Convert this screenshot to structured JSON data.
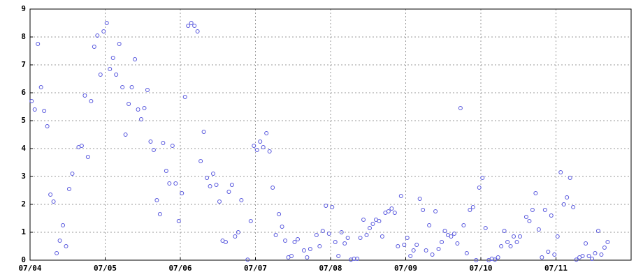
{
  "chart_data": {
    "type": "scatter",
    "x": [
      0.5,
      1.5,
      2.5,
      3.5,
      4.5,
      5.5,
      6.5,
      7.5,
      8.5,
      9.5,
      10.5,
      11.5,
      12.5,
      13.5,
      15.5,
      16.5,
      17.5,
      18.5,
      19.5,
      20.5,
      21.5,
      22.5,
      23.5,
      24.5,
      25.5,
      26.5,
      27.5,
      28.5,
      29.5,
      30.5,
      31.5,
      32.5,
      33.5,
      34.5,
      35.5,
      36.5,
      37.5,
      38.5,
      39.5,
      40.5,
      41.5,
      42.5,
      43.5,
      44.5,
      45.5,
      46.5,
      47.5,
      48.5,
      49.5,
      50.5,
      51.5,
      52.5,
      53.5,
      54.5,
      55.5,
      56.5,
      57.5,
      58.5,
      59.5,
      60.5,
      61.5,
      62.5,
      63.5,
      64.5,
      65.5,
      66.5,
      67.5,
      69.5,
      70.5,
      71.5,
      72.5,
      73.5,
      74.5,
      75.5,
      76.5,
      77.5,
      78.5,
      79.5,
      80.5,
      81.5,
      82.5,
      83.5,
      84.5,
      85.5,
      87.5,
      88.5,
      89.5,
      91.5,
      92.5,
      93.5,
      94.5,
      95.5,
      96.5,
      97.5,
      98.5,
      99.5,
      100.5,
      101.5,
      102.5,
      103.5,
      104.5,
      105.5,
      106.5,
      107.5,
      108.5,
      109.5,
      110.5,
      111.5,
      112.5,
      113.5,
      114.5,
      115.5,
      116.5,
      117.5,
      118.5,
      119.5,
      120.5,
      121.5,
      122.5,
      123.5,
      124.5,
      125.5,
      126.5,
      127.5,
      128.5,
      129.5,
      130.5,
      131.5,
      132.5,
      133.5,
      134.5,
      135.5,
      136.5,
      137.5,
      138.5,
      139.5,
      140.5,
      141.5,
      142.5,
      143.5,
      144.5,
      145.5,
      146.5,
      147.5,
      148.5,
      149.5,
      150.5,
      151.5,
      152.5,
      153.5,
      154.5,
      155.5,
      156.5,
      158.5,
      159.5,
      160.5,
      161.5,
      162.5,
      163.5,
      164.5,
      165.5,
      166.5,
      167.5,
      168.5,
      169.5,
      170.5,
      171.5,
      172.5,
      173.5,
      174.5,
      175.5,
      176.5,
      177.5,
      178.5,
      179.5,
      180.5,
      181.5,
      182.5,
      183.5,
      184.5
    ],
    "values": [
      5.7,
      5.4,
      7.75,
      6.2,
      5.35,
      4.8,
      2.35,
      2.1,
      0.25,
      0.7,
      1.25,
      0.5,
      2.55,
      3.1,
      4.05,
      4.1,
      5.9,
      3.7,
      5.7,
      7.65,
      8.05,
      6.65,
      8.2,
      8.5,
      6.85,
      7.25,
      6.65,
      7.75,
      6.2,
      4.5,
      5.6,
      6.2,
      7.2,
      5.4,
      5.05,
      5.45,
      6.1,
      4.25,
      3.95,
      2.15,
      1.65,
      4.2,
      3.2,
      2.75,
      4.1,
      2.75,
      1.4,
      2.4,
      5.85,
      8.4,
      8.5,
      8.4,
      8.2,
      3.55,
      4.6,
      2.95,
      2.65,
      3.1,
      2.7,
      2.1,
      0.7,
      0.65,
      2.45,
      2.7,
      0.85,
      1.0,
      2.15,
      0.02,
      1.4,
      4.1,
      3.95,
      4.25,
      4.05,
      4.55,
      3.9,
      2.6,
      0.9,
      1.65,
      1.2,
      0.7,
      0.1,
      0.15,
      0.65,
      0.75,
      0.35,
      0.1,
      0.4,
      0.9,
      0.5,
      1.05,
      1.95,
      0.95,
      1.9,
      0.65,
      0.15,
      1.0,
      0.6,
      0.8,
      0.02,
      0.05,
      0.05,
      0.8,
      1.45,
      0.9,
      1.15,
      1.3,
      1.45,
      1.4,
      0.85,
      1.7,
      1.75,
      1.85,
      1.7,
      0.5,
      2.3,
      0.55,
      0.8,
      0.15,
      0.35,
      0.55,
      2.2,
      1.8,
      0.35,
      1.25,
      0.2,
      1.75,
      0.4,
      0.65,
      1.05,
      0.9,
      0.85,
      0.95,
      0.6,
      5.45,
      1.25,
      0.25,
      1.8,
      1.9,
      0.0,
      2.6,
      2.95,
      1.15,
      0.0,
      0.05,
      0.02,
      0.1,
      0.5,
      1.05,
      0.65,
      0.5,
      0.85,
      0.65,
      0.85,
      1.55,
      1.4,
      1.8,
      2.4,
      1.1,
      0.1,
      1.8,
      0.3,
      1.6,
      0.2,
      0.85,
      3.15,
      2.0,
      2.25,
      2.95,
      1.9,
      0.02,
      0.1,
      0.15,
      0.6,
      0.15,
      0.05,
      0.25,
      1.05,
      0.2,
      0.45,
      0.65
    ],
    "color": "#5555dd",
    "xlim": [
      0,
      192
    ],
    "xticks": [
      {
        "value": 0,
        "label": "07/04"
      },
      {
        "value": 24,
        "label": "07/05"
      },
      {
        "value": 48,
        "label": "07/06"
      },
      {
        "value": 72,
        "label": "07/07"
      },
      {
        "value": 96,
        "label": "07/08"
      },
      {
        "value": 120,
        "label": "07/09"
      },
      {
        "value": 144,
        "label": "07/10"
      },
      {
        "value": 168,
        "label": "07/11"
      }
    ],
    "ylim": [
      0,
      9
    ],
    "yticks": [
      0,
      1,
      2,
      3,
      4,
      5,
      6,
      7,
      8,
      9
    ],
    "grid": true
  }
}
